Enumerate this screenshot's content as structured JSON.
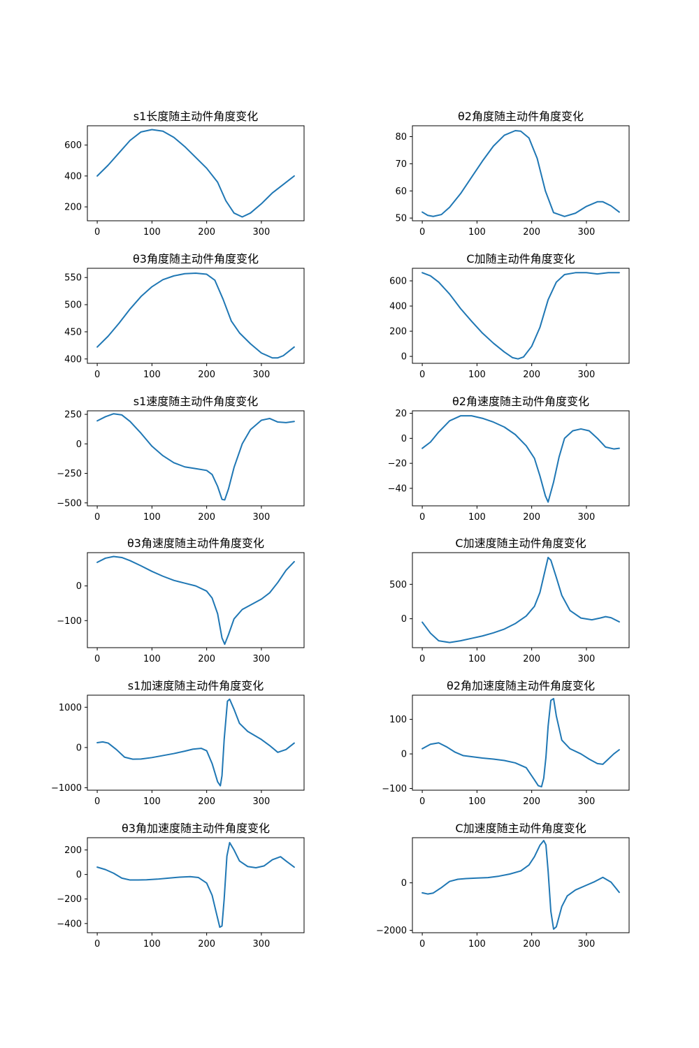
{
  "figure": {
    "background": "#ffffff",
    "line_color": "#1f77b4"
  },
  "chart_data": [
    {
      "type": "line",
      "title": "s1长度随主动件角度变化",
      "xlabel": "",
      "ylabel": "",
      "xlim": [
        -18,
        378
      ],
      "ylim": [
        110,
        725
      ],
      "xticks": [
        0,
        100,
        200,
        300
      ],
      "yticks": [
        200,
        400,
        600
      ],
      "grid": false,
      "series": [
        {
          "x": [
            0,
            20,
            40,
            60,
            80,
            100,
            120,
            140,
            160,
            180,
            200,
            220,
            235,
            250,
            265,
            280,
            300,
            320,
            340,
            360
          ],
          "values": [
            400,
            470,
            550,
            630,
            685,
            700,
            690,
            650,
            590,
            520,
            450,
            360,
            240,
            160,
            135,
            160,
            220,
            290,
            345,
            400
          ]
        }
      ]
    },
    {
      "type": "line",
      "title": "θ2角度随主动件角度变化",
      "xlabel": "",
      "ylabel": "",
      "xlim": [
        -18,
        378
      ],
      "ylim": [
        49,
        84
      ],
      "xticks": [
        0,
        100,
        200,
        300
      ],
      "yticks": [
        50,
        60,
        70,
        80
      ],
      "grid": false,
      "series": [
        {
          "x": [
            0,
            10,
            20,
            35,
            50,
            70,
            90,
            110,
            130,
            150,
            170,
            180,
            195,
            210,
            225,
            240,
            260,
            280,
            300,
            320,
            330,
            345,
            360
          ],
          "values": [
            52.2,
            51,
            50.6,
            51.3,
            54,
            59,
            65,
            71,
            76.5,
            80.5,
            82.2,
            82,
            79.5,
            72,
            60,
            52,
            50.6,
            51.8,
            54.3,
            56,
            56,
            54.5,
            52.2
          ]
        }
      ]
    },
    {
      "type": "line",
      "title": "θ3角度随主动件角度变化",
      "xlabel": "",
      "ylabel": "",
      "xlim": [
        -18,
        378
      ],
      "ylim": [
        392,
        567
      ],
      "xticks": [
        0,
        100,
        200,
        300
      ],
      "yticks": [
        400,
        450,
        500,
        550
      ],
      "grid": false,
      "series": [
        {
          "x": [
            0,
            20,
            40,
            60,
            80,
            100,
            120,
            140,
            160,
            180,
            200,
            215,
            230,
            245,
            260,
            280,
            300,
            320,
            330,
            340,
            360
          ],
          "values": [
            422,
            442,
            466,
            492,
            515,
            533,
            546,
            553,
            557,
            558,
            556,
            545,
            510,
            470,
            448,
            428,
            411,
            402,
            402,
            406,
            422
          ]
        }
      ]
    },
    {
      "type": "line",
      "title": "C加随主动件角度变化",
      "xlabel": "",
      "ylabel": "",
      "xlim": [
        -18,
        378
      ],
      "ylim": [
        -55,
        700
      ],
      "xticks": [
        0,
        100,
        200,
        300
      ],
      "yticks": [
        0,
        200,
        400,
        600
      ],
      "grid": false,
      "series": [
        {
          "x": [
            0,
            15,
            30,
            50,
            70,
            90,
            110,
            130,
            150,
            165,
            175,
            185,
            200,
            215,
            230,
            245,
            260,
            280,
            300,
            320,
            340,
            360
          ],
          "values": [
            665,
            640,
            590,
            495,
            380,
            280,
            185,
            105,
            35,
            -10,
            -20,
            -5,
            80,
            230,
            450,
            590,
            650,
            665,
            665,
            655,
            665,
            665
          ]
        }
      ]
    },
    {
      "type": "line",
      "title": "s1速度随主动件角度变化",
      "xlabel": "",
      "ylabel": "",
      "xlim": [
        -18,
        378
      ],
      "ylim": [
        -525,
        280
      ],
      "xticks": [
        0,
        100,
        200,
        300
      ],
      "yticks": [
        -500,
        -250,
        0,
        250
      ],
      "grid": false,
      "series": [
        {
          "x": [
            0,
            15,
            30,
            45,
            60,
            80,
            100,
            120,
            140,
            160,
            180,
            200,
            210,
            220,
            228,
            233,
            240,
            250,
            265,
            280,
            300,
            315,
            330,
            345,
            360
          ],
          "values": [
            195,
            230,
            255,
            245,
            190,
            90,
            -20,
            -100,
            -160,
            -195,
            -210,
            -225,
            -260,
            -360,
            -470,
            -475,
            -380,
            -200,
            0,
            120,
            200,
            215,
            185,
            180,
            190
          ]
        }
      ]
    },
    {
      "type": "line",
      "title": "θ2角速度随主动件角度变化",
      "xlabel": "",
      "ylabel": "",
      "xlim": [
        -18,
        378
      ],
      "ylim": [
        -54,
        22
      ],
      "xticks": [
        0,
        100,
        200,
        300
      ],
      "yticks": [
        -40,
        -20,
        0,
        20
      ],
      "grid": false,
      "series": [
        {
          "x": [
            0,
            15,
            30,
            50,
            70,
            90,
            110,
            130,
            150,
            170,
            190,
            205,
            215,
            225,
            230,
            240,
            250,
            260,
            275,
            290,
            305,
            320,
            335,
            350,
            360
          ],
          "values": [
            -8,
            -3,
            5,
            14,
            18,
            18,
            16,
            13,
            9,
            3,
            -6,
            -16,
            -30,
            -46,
            -51,
            -35,
            -15,
            0,
            6,
            7.5,
            6,
            0,
            -7,
            -8.5,
            -8
          ]
        }
      ]
    },
    {
      "type": "line",
      "title": "θ3角速度随主动件角度变化",
      "xlabel": "",
      "ylabel": "",
      "xlim": [
        -18,
        378
      ],
      "ylim": [
        -178,
        96
      ],
      "xticks": [
        0,
        100,
        200,
        300
      ],
      "yticks": [
        -100,
        0
      ],
      "grid": false,
      "series": [
        {
          "x": [
            0,
            15,
            30,
            45,
            60,
            80,
            100,
            120,
            140,
            160,
            180,
            200,
            210,
            220,
            228,
            233,
            240,
            250,
            265,
            280,
            300,
            315,
            330,
            345,
            360
          ],
          "values": [
            68,
            80,
            85,
            82,
            73,
            58,
            42,
            28,
            16,
            8,
            0,
            -15,
            -35,
            -80,
            -150,
            -168,
            -140,
            -95,
            -68,
            -55,
            -38,
            -20,
            10,
            45,
            70
          ]
        }
      ]
    },
    {
      "type": "line",
      "title": "C加速度随主动件角度变化",
      "xlabel": "",
      "ylabel": "",
      "xlim": [
        -18,
        378
      ],
      "ylim": [
        -420,
        960
      ],
      "xticks": [
        0,
        100,
        200,
        300
      ],
      "yticks": [
        0,
        500
      ],
      "grid": false,
      "series": [
        {
          "x": [
            0,
            15,
            30,
            50,
            70,
            90,
            110,
            130,
            150,
            170,
            190,
            205,
            215,
            225,
            230,
            235,
            245,
            255,
            270,
            290,
            310,
            325,
            335,
            345,
            360
          ],
          "values": [
            -50,
            -210,
            -320,
            -345,
            -320,
            -285,
            -250,
            -205,
            -150,
            -70,
            40,
            180,
            380,
            720,
            890,
            850,
            600,
            340,
            120,
            10,
            -15,
            10,
            30,
            15,
            -45
          ]
        }
      ]
    },
    {
      "type": "line",
      "title": "s1加速度随主动件角度变化",
      "xlabel": "",
      "ylabel": "",
      "xlim": [
        -18,
        378
      ],
      "ylim": [
        -1060,
        1300
      ],
      "xticks": [
        0,
        100,
        200,
        300
      ],
      "yticks": [
        -1000,
        0,
        1000
      ],
      "grid": false,
      "series": [
        {
          "x": [
            0,
            10,
            20,
            35,
            50,
            65,
            80,
            100,
            120,
            140,
            160,
            175,
            190,
            200,
            210,
            220,
            225,
            228,
            232,
            238,
            242,
            250,
            260,
            275,
            300,
            315,
            330,
            345,
            360
          ],
          "values": [
            120,
            140,
            110,
            -50,
            -240,
            -290,
            -285,
            -250,
            -200,
            -150,
            -90,
            -40,
            -20,
            -80,
            -400,
            -850,
            -950,
            -700,
            200,
            1150,
            1200,
            950,
            600,
            400,
            200,
            50,
            -120,
            -50,
            110
          ]
        }
      ]
    },
    {
      "type": "line",
      "title": "θ2角加速度随主动件角度变化",
      "xlabel": "",
      "ylabel": "",
      "xlim": [
        -18,
        378
      ],
      "ylim": [
        -105,
        170
      ],
      "xticks": [
        0,
        100,
        200,
        300
      ],
      "yticks": [
        -100,
        0,
        100
      ],
      "grid": false,
      "series": [
        {
          "x": [
            0,
            15,
            30,
            45,
            60,
            75,
            90,
            110,
            130,
            150,
            170,
            190,
            205,
            212,
            218,
            222,
            226,
            230,
            235,
            240,
            245,
            255,
            270,
            290,
            305,
            320,
            330,
            340,
            350,
            360
          ],
          "values": [
            15,
            28,
            32,
            20,
            5,
            -5,
            -8,
            -12,
            -15,
            -19,
            -26,
            -40,
            -75,
            -92,
            -95,
            -70,
            -10,
            80,
            155,
            160,
            110,
            40,
            15,
            0,
            -15,
            -28,
            -30,
            -15,
            0,
            12
          ]
        }
      ]
    },
    {
      "type": "line",
      "title": "θ3角加速度随主动件角度变化",
      "xlabel": "",
      "ylabel": "",
      "xlim": [
        -18,
        378
      ],
      "ylim": [
        -475,
        300
      ],
      "xticks": [
        0,
        100,
        200,
        300
      ],
      "yticks": [
        -400,
        -200,
        0,
        200
      ],
      "grid": false,
      "series": [
        {
          "x": [
            0,
            15,
            30,
            45,
            60,
            75,
            90,
            110,
            130,
            150,
            170,
            185,
            200,
            210,
            218,
            224,
            228,
            232,
            237,
            242,
            250,
            260,
            275,
            290,
            305,
            320,
            335,
            345,
            360
          ],
          "values": [
            60,
            40,
            10,
            -30,
            -45,
            -45,
            -43,
            -38,
            -30,
            -22,
            -18,
            -25,
            -70,
            -170,
            -320,
            -430,
            -420,
            -200,
            150,
            260,
            200,
            110,
            65,
            55,
            70,
            120,
            145,
            110,
            60
          ]
        }
      ]
    },
    {
      "type": "line",
      "title": "C加速度随主动件角度变化",
      "xlabel": "",
      "ylabel": "",
      "xlim": [
        -18,
        378
      ],
      "ylim": [
        -2100,
        1900
      ],
      "xticks": [
        0,
        100,
        200,
        300
      ],
      "yticks": [
        -2000,
        0
      ],
      "grid": false,
      "series": [
        {
          "x": [
            0,
            10,
            20,
            35,
            50,
            65,
            80,
            100,
            120,
            140,
            160,
            180,
            195,
            205,
            215,
            222,
            226,
            230,
            235,
            240,
            245,
            255,
            265,
            280,
            300,
            315,
            330,
            345,
            360
          ],
          "values": [
            -420,
            -470,
            -430,
            -200,
            60,
            150,
            180,
            200,
            220,
            280,
            370,
            500,
            750,
            1100,
            1580,
            1780,
            1600,
            500,
            -1200,
            -1950,
            -1850,
            -1000,
            -550,
            -300,
            -100,
            50,
            230,
            30,
            -400
          ]
        }
      ]
    }
  ]
}
